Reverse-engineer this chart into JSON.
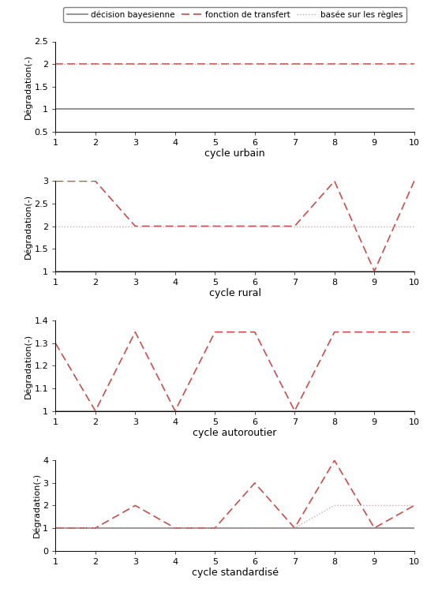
{
  "legend_labels": [
    "décision bayesienne",
    "fonction de transfert",
    "basée sur les règles"
  ],
  "x": [
    1,
    2,
    3,
    4,
    5,
    6,
    7,
    8,
    9,
    10
  ],
  "urban_bayes": [
    1,
    1,
    1,
    1,
    1,
    1,
    1,
    1,
    1,
    1
  ],
  "urban_transfer": [
    2,
    2,
    2,
    2,
    2,
    2,
    2,
    2,
    2,
    2
  ],
  "urban_rules": [
    2,
    2,
    2,
    2,
    2,
    2,
    2,
    2,
    2,
    2
  ],
  "urban_ylim": [
    0.5,
    2.5
  ],
  "urban_yticks": [
    0.5,
    1.0,
    1.5,
    2.0,
    2.5
  ],
  "urban_xlabel": "cycle urbain",
  "rural_bayes": [
    1,
    1,
    1,
    1,
    1,
    1,
    1,
    1,
    1,
    1
  ],
  "rural_transfer": [
    3,
    3,
    2,
    2,
    2,
    2,
    2,
    3,
    1,
    3
  ],
  "rural_rules": [
    2,
    2,
    2,
    2,
    2,
    2,
    2,
    2,
    2,
    2
  ],
  "rural_ylim": [
    1,
    3
  ],
  "rural_yticks": [
    1.0,
    1.5,
    2.0,
    2.5,
    3.0
  ],
  "rural_xlabel": "cycle rural",
  "highway_bayes": [
    1,
    1,
    1,
    1,
    1,
    1,
    1,
    1,
    1,
    1
  ],
  "highway_transfer": [
    1.3,
    1.0,
    1.35,
    1.0,
    1.35,
    1.35,
    1.0,
    1.35,
    1.35,
    1.35
  ],
  "highway_rules": [
    1,
    1,
    1,
    1,
    1,
    1,
    1,
    1,
    1,
    1
  ],
  "highway_ylim": [
    1.0,
    1.4
  ],
  "highway_yticks": [
    1.0,
    1.1,
    1.2,
    1.3,
    1.4
  ],
  "highway_xlabel": "cycle autoroutier",
  "standard_bayes": [
    1,
    1,
    1,
    1,
    1,
    1,
    1,
    1,
    1,
    1
  ],
  "standard_transfer": [
    1,
    1,
    2,
    1,
    1,
    3,
    1,
    4,
    1,
    2
  ],
  "standard_rules": [
    1,
    1,
    1,
    1,
    1,
    1,
    1,
    2,
    2,
    2
  ],
  "standard_ylim": [
    0,
    4
  ],
  "standard_yticks": [
    0,
    1,
    2,
    3,
    4
  ],
  "standard_xlabel": "cycle standardisé",
  "color_bayes": "#808080",
  "color_transfer": "#c0504d",
  "color_rules": "#c8a8a8",
  "ylabel": "Dégradation(-)"
}
